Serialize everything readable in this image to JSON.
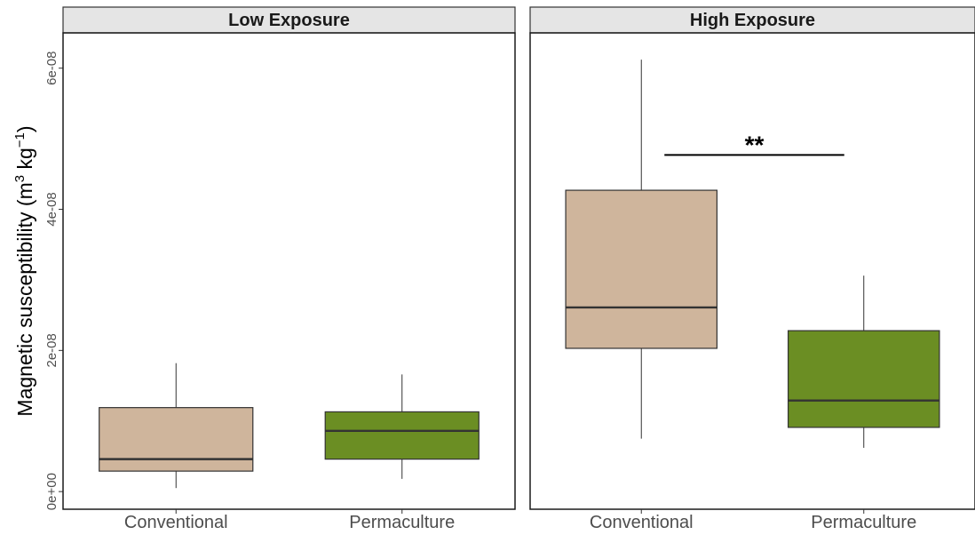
{
  "chart_data": {
    "type": "box",
    "ylabel": "Magnetic susceptibility (m3 kg−1)",
    "ylabel_parts": {
      "prefix": "Magnetic susceptibility (m",
      "sup1": "3",
      "middle": " kg",
      "sup2": "−1",
      "suffix": ")"
    },
    "y_ticks": [
      {
        "value": 0,
        "label": "0e+00"
      },
      {
        "value": 2e-08,
        "label": "2e-08"
      },
      {
        "value": 4e-08,
        "label": "4e-08"
      },
      {
        "value": 6e-08,
        "label": "6e-08"
      }
    ],
    "ylim": [
      -2.5e-09,
      6.5e-08
    ],
    "categories": [
      "Conventional",
      "Permaculture"
    ],
    "grid": false,
    "colors": {
      "Conventional": "#cfb59c",
      "Permaculture": "#6b8e23"
    },
    "panels": [
      {
        "title": "Low Exposure",
        "boxes": [
          {
            "category": "Conventional",
            "whisker_low": 5e-10,
            "q1": 2.9e-09,
            "median": 4.6e-09,
            "q3": 1.19e-08,
            "whisker_high": 1.82e-08
          },
          {
            "category": "Permaculture",
            "whisker_low": 1.8e-09,
            "q1": 4.6e-09,
            "median": 8.6e-09,
            "q3": 1.13e-08,
            "whisker_high": 1.66e-08
          }
        ]
      },
      {
        "title": "High Exposure",
        "boxes": [
          {
            "category": "Conventional",
            "whisker_low": 7.5e-09,
            "q1": 2.03e-08,
            "median": 2.61e-08,
            "q3": 4.27e-08,
            "whisker_high": 6.12e-08
          },
          {
            "category": "Permaculture",
            "whisker_low": 6.2e-09,
            "q1": 9.1e-09,
            "median": 1.29e-08,
            "q3": 2.28e-08,
            "whisker_high": 3.06e-08
          }
        ],
        "annotation": {
          "label": "**",
          "from": "Conventional",
          "to": "Permaculture",
          "y": 4.77e-08
        }
      }
    ]
  }
}
